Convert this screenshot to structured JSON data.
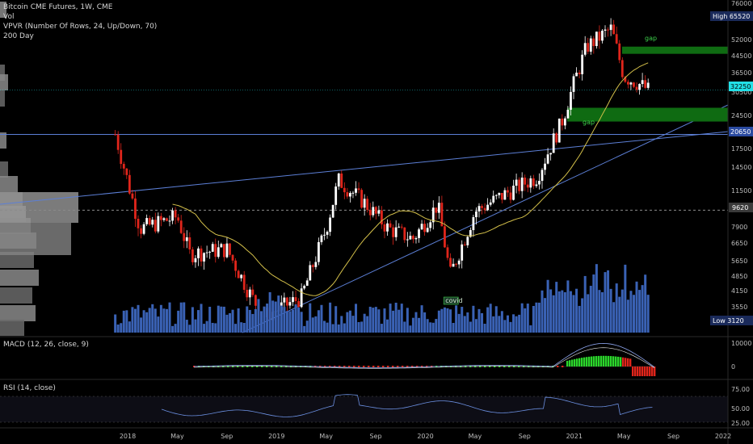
{
  "legend": {
    "title": "Bitcoin CME Futures, 1W, CME",
    "vol": "Vol",
    "vpvr": "VPVR (Number Of Rows, 24, Up/Down, 70)",
    "ma": "200 Day"
  },
  "panes": {
    "macd_label": "MACD (12, 26, close, 9)",
    "rsi_label": "RSI (14, close)"
  },
  "colors": {
    "background": "#000000",
    "up": "#ffffff",
    "down": "#e0251b",
    "ma": "#d4c04a",
    "trend": "#5c7fd6",
    "volume": "#3a62b5",
    "gap": "#0f6b12",
    "current": "#22e0e6",
    "macd_line": "#8ea6f0",
    "signal_line": "#e9e9e9",
    "rsi": "#6b8fe0"
  },
  "price_scale": {
    "labels": [
      "76000",
      "65520",
      "52000",
      "44500",
      "36500",
      "32250",
      "30500",
      "24500",
      "20650",
      "17500",
      "14500",
      "11500",
      "9620",
      "7900",
      "6650",
      "5650",
      "4850",
      "4150",
      "3550",
      "3120"
    ],
    "badges": [
      {
        "side": "High",
        "value": "65520"
      },
      {
        "side": "Low",
        "value": "3120"
      }
    ],
    "current": "32250",
    "level_9620": "9620",
    "level_20650": "20650"
  },
  "annotations": {
    "gap_upper": "gap",
    "gap_lower": "gap",
    "covid": "covid"
  },
  "macd_scale": [
    "10000",
    "0"
  ],
  "rsi_scale": [
    "75.00",
    "50.00",
    "25.00"
  ],
  "time_axis": [
    "2018",
    "May",
    "Sep",
    "2019",
    "May",
    "Sep",
    "2020",
    "May",
    "Sep",
    "2021",
    "May",
    "Sep",
    "2022"
  ],
  "chart_data": {
    "type": "candlestick",
    "title": "Bitcoin CME Futures, 1W, CME",
    "scale": "log",
    "ylim": [
      2800,
      80000
    ],
    "x_range": [
      "2017-12",
      "2022-01"
    ],
    "high": 65520,
    "low": 3120,
    "last": 32250,
    "horizontal_levels": [
      20650,
      9620
    ],
    "gaps": [
      {
        "label": "gap",
        "low": 46500,
        "high": 50000
      },
      {
        "label": "gap",
        "low": 23500,
        "high": 27000
      }
    ],
    "ohlc_keyframes": [
      {
        "date": "2017-12",
        "price": 20650
      },
      {
        "date": "2018-02",
        "price": 8000
      },
      {
        "date": "2018-05",
        "price": 9000
      },
      {
        "date": "2018-06",
        "price": 6200
      },
      {
        "date": "2018-09",
        "price": 6500
      },
      {
        "date": "2018-11",
        "price": 4000
      },
      {
        "date": "2018-12",
        "price": 3300
      },
      {
        "date": "2019-03",
        "price": 4000
      },
      {
        "date": "2019-05",
        "price": 8000
      },
      {
        "date": "2019-06",
        "price": 13000
      },
      {
        "date": "2019-08",
        "price": 10500
      },
      {
        "date": "2019-10",
        "price": 8000
      },
      {
        "date": "2019-12",
        "price": 7200
      },
      {
        "date": "2020-02",
        "price": 10200
      },
      {
        "date": "2020-03",
        "price": 5000
      },
      {
        "date": "2020-05",
        "price": 9500
      },
      {
        "date": "2020-08",
        "price": 11800
      },
      {
        "date": "2020-10",
        "price": 13500
      },
      {
        "date": "2020-12",
        "price": 23500
      },
      {
        "date": "2021-01",
        "price": 35000
      },
      {
        "date": "2021-02",
        "price": 50000
      },
      {
        "date": "2021-04",
        "price": 60000
      },
      {
        "date": "2021-05",
        "price": 37000
      },
      {
        "date": "2021-06",
        "price": 35000
      },
      {
        "date": "2021-07",
        "price": 32250
      }
    ],
    "annotation": {
      "label": "covid",
      "date": "2020-03"
    }
  }
}
